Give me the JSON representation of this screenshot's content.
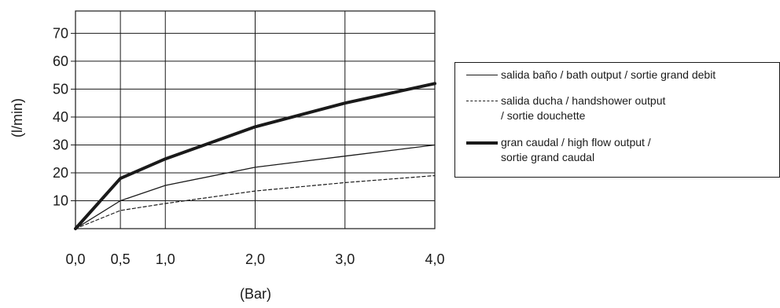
{
  "chart_data": {
    "type": "line",
    "title": "",
    "xlabel": "(Bar)",
    "ylabel": "(l/min)",
    "x": [
      0.0,
      0.5,
      1.0,
      2.0,
      3.0,
      4.0
    ],
    "x_tick_labels": [
      "0,0",
      "0,5",
      "1,0",
      "2,0",
      "3,0",
      "4,0"
    ],
    "y_ticks": [
      10,
      20,
      30,
      40,
      50,
      60,
      70
    ],
    "y_tick_labels": [
      "10",
      "20",
      "30",
      "40",
      "50",
      "60",
      "70"
    ],
    "xlim": [
      0,
      4.0
    ],
    "ylim": [
      0,
      78
    ],
    "grid": true,
    "legend_position": "right",
    "series": [
      {
        "name": "salida baño / bath output / sortie grand debit",
        "style": "solid",
        "color": "#1a1a1a",
        "values": [
          0,
          10,
          15.5,
          22,
          26,
          30
        ]
      },
      {
        "name": "salida ducha / handshower output\n/ sortie douchette",
        "style": "dashed",
        "color": "#1a1a1a",
        "values": [
          0,
          6.5,
          9,
          13.5,
          16.5,
          19
        ]
      },
      {
        "name": "gran caudal / high flow output /\nsortie grand caudal",
        "style": "bold",
        "color": "#1a1a1a",
        "values": [
          0,
          18,
          25,
          36.5,
          45,
          52
        ]
      }
    ]
  }
}
